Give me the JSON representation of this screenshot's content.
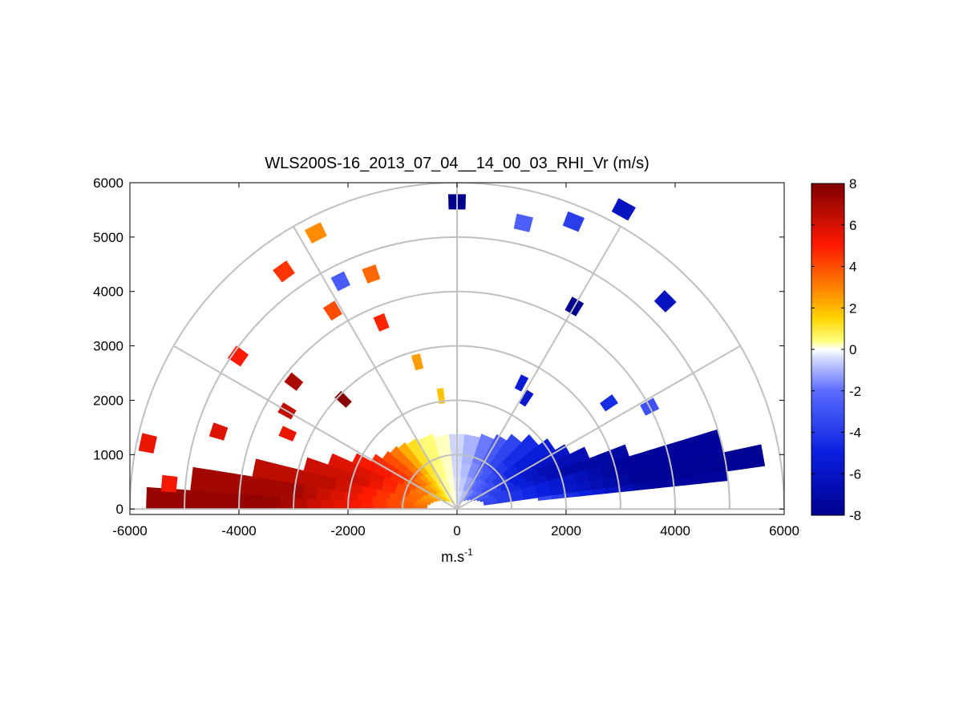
{
  "chart_data": {
    "type": "heatmap",
    "title": "WLS200S-16_2013_07_04__14_00_03_RHI_Vr (m/s)",
    "xlabel": "m.s",
    "xlabel_superscript": "-1",
    "ylabel": "",
    "xlim": [
      -6000,
      6000
    ],
    "ylim": [
      -100,
      6000
    ],
    "xticks": [
      -6000,
      -4000,
      -2000,
      0,
      2000,
      4000,
      6000
    ],
    "yticks": [
      0,
      1000,
      2000,
      3000,
      4000,
      5000,
      6000
    ],
    "grid": true,
    "polar_grid": {
      "range_rings": [
        1000,
        2000,
        3000,
        4000,
        5000,
        6000
      ],
      "spokes_deg": [
        30,
        60,
        90,
        120,
        150
      ]
    },
    "colorbar": {
      "min": -8,
      "max": 8,
      "ticks": [
        8,
        6,
        4,
        2,
        0,
        -2,
        -4,
        -6,
        -8
      ],
      "colormap": [
        {
          "v": -8,
          "color": "#00008f"
        },
        {
          "v": -5,
          "color": "#0a1fe0"
        },
        {
          "v": -2,
          "color": "#5a6cff"
        },
        {
          "v": -0.4,
          "color": "#d6dcff"
        },
        {
          "v": 0,
          "color": "#ffffff"
        },
        {
          "v": 0.4,
          "color": "#ffff80"
        },
        {
          "v": 1.5,
          "color": "#ffd400"
        },
        {
          "v": 3,
          "color": "#ff8000"
        },
        {
          "v": 5,
          "color": "#ff1a00"
        },
        {
          "v": 8,
          "color": "#800000"
        }
      ]
    },
    "sectors": [
      {
        "az": [
          176,
          180
        ],
        "r": [
          550,
          5700
        ],
        "vr": 7.5
      },
      {
        "az": [
          171,
          176
        ],
        "r": [
          550,
          4900
        ],
        "vr": 7.2
      },
      {
        "az": [
          166,
          171
        ],
        "r": [
          500,
          3800
        ],
        "vr": 6.6
      },
      {
        "az": [
          161,
          166
        ],
        "r": [
          450,
          2900
        ],
        "vr": 6.2
      },
      {
        "az": [
          156,
          161
        ],
        "r": [
          400,
          2500
        ],
        "vr": 5.8
      },
      {
        "az": [
          151,
          156
        ],
        "r": [
          350,
          2100
        ],
        "vr": 5.2
      },
      {
        "az": [
          146,
          151
        ],
        "r": [
          300,
          1800
        ],
        "vr": 4.6
      },
      {
        "az": [
          140,
          146
        ],
        "r": [
          250,
          1650
        ],
        "vr": 4.0
      },
      {
        "az": [
          134,
          140
        ],
        "r": [
          200,
          1600
        ],
        "vr": 3.2
      },
      {
        "az": [
          128,
          134
        ],
        "r": [
          150,
          1550
        ],
        "vr": 2.2
      },
      {
        "az": [
          120,
          128
        ],
        "r": [
          100,
          1500
        ],
        "vr": 1.2
      },
      {
        "az": [
          108,
          120
        ],
        "r": [
          80,
          1450
        ],
        "vr": 0.5
      },
      {
        "az": [
          96,
          108
        ],
        "r": [
          60,
          1380
        ],
        "vr": 0.2
      },
      {
        "az": [
          84,
          96
        ],
        "r": [
          60,
          1380
        ],
        "vr": -0.5
      },
      {
        "az": [
          72,
          84
        ],
        "r": [
          80,
          1380
        ],
        "vr": -1.0
      },
      {
        "az": [
          62,
          72
        ],
        "r": [
          100,
          1450
        ],
        "vr": -1.8
      },
      {
        "az": [
          54,
          62
        ],
        "r": [
          150,
          1550
        ],
        "vr": -2.8
      },
      {
        "az": [
          46,
          54
        ],
        "r": [
          200,
          1700
        ],
        "vr": -3.6
      },
      {
        "az": [
          38,
          46
        ],
        "r": [
          250,
          1900
        ],
        "vr": -4.5
      },
      {
        "az": [
          31,
          38
        ],
        "r": [
          300,
          2100
        ],
        "vr": -5.3
      },
      {
        "az": [
          26,
          31
        ],
        "r": [
          350,
          2300
        ],
        "vr": -6.0
      },
      {
        "az": [
          21,
          26
        ],
        "r": [
          400,
          2600
        ],
        "vr": -6.6
      },
      {
        "az": [
          17,
          21
        ],
        "r": [
          450,
          3300
        ],
        "vr": -7.2
      },
      {
        "az": [
          12,
          17
        ],
        "r": [
          500,
          5000
        ],
        "vr": -7.6
      },
      {
        "az": [
          8,
          12
        ],
        "r": [
          500,
          5700
        ],
        "vr": -7.8
      },
      {
        "az": [
          6,
          8
        ],
        "r": [
          1500,
          5000
        ],
        "vr": -7.5
      }
    ],
    "gates": [
      {
        "az": 175,
        "r": 5300,
        "vr": 5.2
      },
      {
        "az": 168,
        "r": 5800,
        "vr": 5.5
      },
      {
        "az": 162,
        "r": 4600,
        "vr": 5.8
      },
      {
        "az": 156,
        "r": 3400,
        "vr": 5.5
      },
      {
        "az": 150,
        "r": 3600,
        "vr": 6.5
      },
      {
        "az": 145,
        "r": 4900,
        "vr": 5.0
      },
      {
        "az": 142,
        "r": 3800,
        "vr": 7.0
      },
      {
        "az": 136,
        "r": 2900,
        "vr": 7.8
      },
      {
        "az": 126,
        "r": 5400,
        "vr": 4.5
      },
      {
        "az": 122,
        "r": 4300,
        "vr": 4.0
      },
      {
        "az": 117,
        "r": 5700,
        "vr": 2.8
      },
      {
        "az": 110,
        "r": 4600,
        "vr": 3.5
      },
      {
        "az": 117,
        "r": 4700,
        "vr": -2.6
      },
      {
        "az": 112,
        "r": 3700,
        "vr": 4.8
      },
      {
        "az": 105,
        "r": 2800,
        "vr": 2.5
      },
      {
        "az": 98,
        "r": 2100,
        "vr": 1.8
      },
      {
        "az": 90,
        "r": 5650,
        "vr": -8.0
      },
      {
        "az": 77,
        "r": 5400,
        "vr": -2.5
      },
      {
        "az": 68,
        "r": 5700,
        "vr": -3.8
      },
      {
        "az": 61,
        "r": 6300,
        "vr": -6.2
      },
      {
        "az": 60,
        "r": 4300,
        "vr": -8.0
      },
      {
        "az": 45,
        "r": 5400,
        "vr": -6.2
      },
      {
        "az": 63,
        "r": 2600,
        "vr": -5.5
      },
      {
        "az": 58,
        "r": 2400,
        "vr": -5.8
      },
      {
        "az": 35,
        "r": 3400,
        "vr": -4.5
      },
      {
        "az": 28,
        "r": 4000,
        "vr": -3.0
      }
    ]
  }
}
